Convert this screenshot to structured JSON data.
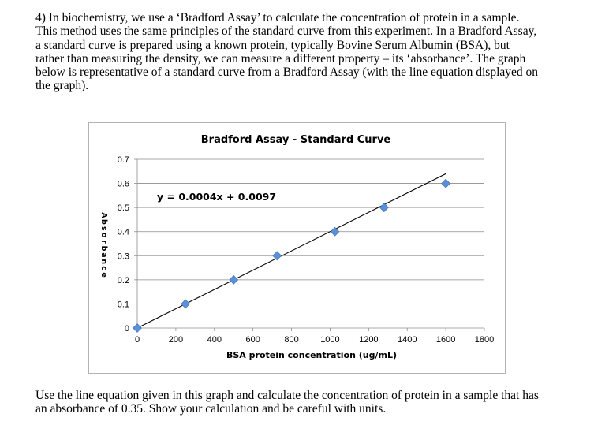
{
  "intro_lines": [
    "4) In biochemistry, we use a ‘Bradford Assay’ to calculate the concentration of protein in a sample.",
    "This method uses the same principles of the standard curve from this experiment.  In a Bradford Assay,",
    "a standard curve is prepared using a known protein, typically Bovine Serum Albumin (BSA), but",
    "rather than measuring the density, we can measure a different property – its ‘absorbance’.  The graph",
    "below is representative of a standard curve from a Bradford Assay (with the line equation displayed on",
    "the graph)."
  ],
  "question_lines": [
    "Use the line equation given in this graph and calculate the concentration of protein in a sample that has",
    "an absorbance of 0.35.  Show your calculation and be careful with units."
  ],
  "chart_data": {
    "type": "scatter",
    "title": "Bradford Assay - Standard Curve",
    "xlabel": "BSA protein concentration (ug/mL)",
    "ylabel": "Absorbance",
    "xlim": [
      0,
      1800
    ],
    "ylim": [
      0,
      0.7
    ],
    "x_ticks": [
      "0",
      "200",
      "400",
      "600",
      "800",
      "1000",
      "1200",
      "1400",
      "1600",
      "1800"
    ],
    "y_ticks": [
      "0",
      "0.1",
      "0.2",
      "0.3",
      "0.4",
      "0.5",
      "0.6",
      "0.7"
    ],
    "grid": true,
    "trendline": {
      "slope": 0.0004,
      "intercept": 0.0097,
      "label": "y = 0.0004x + 0.0097"
    },
    "points": [
      {
        "x": 0,
        "y": 0
      },
      {
        "x": 250,
        "y": 0.1
      },
      {
        "x": 500,
        "y": 0.2
      },
      {
        "x": 725,
        "y": 0.3
      },
      {
        "x": 1025,
        "y": 0.4
      },
      {
        "x": 1280,
        "y": 0.5
      },
      {
        "x": 1600,
        "y": 0.6
      }
    ],
    "colors": {
      "marker": "#5b8fd6",
      "marker_stroke": "#3a6eb5",
      "line": "#000000",
      "grid": "#8c8c8c"
    }
  }
}
